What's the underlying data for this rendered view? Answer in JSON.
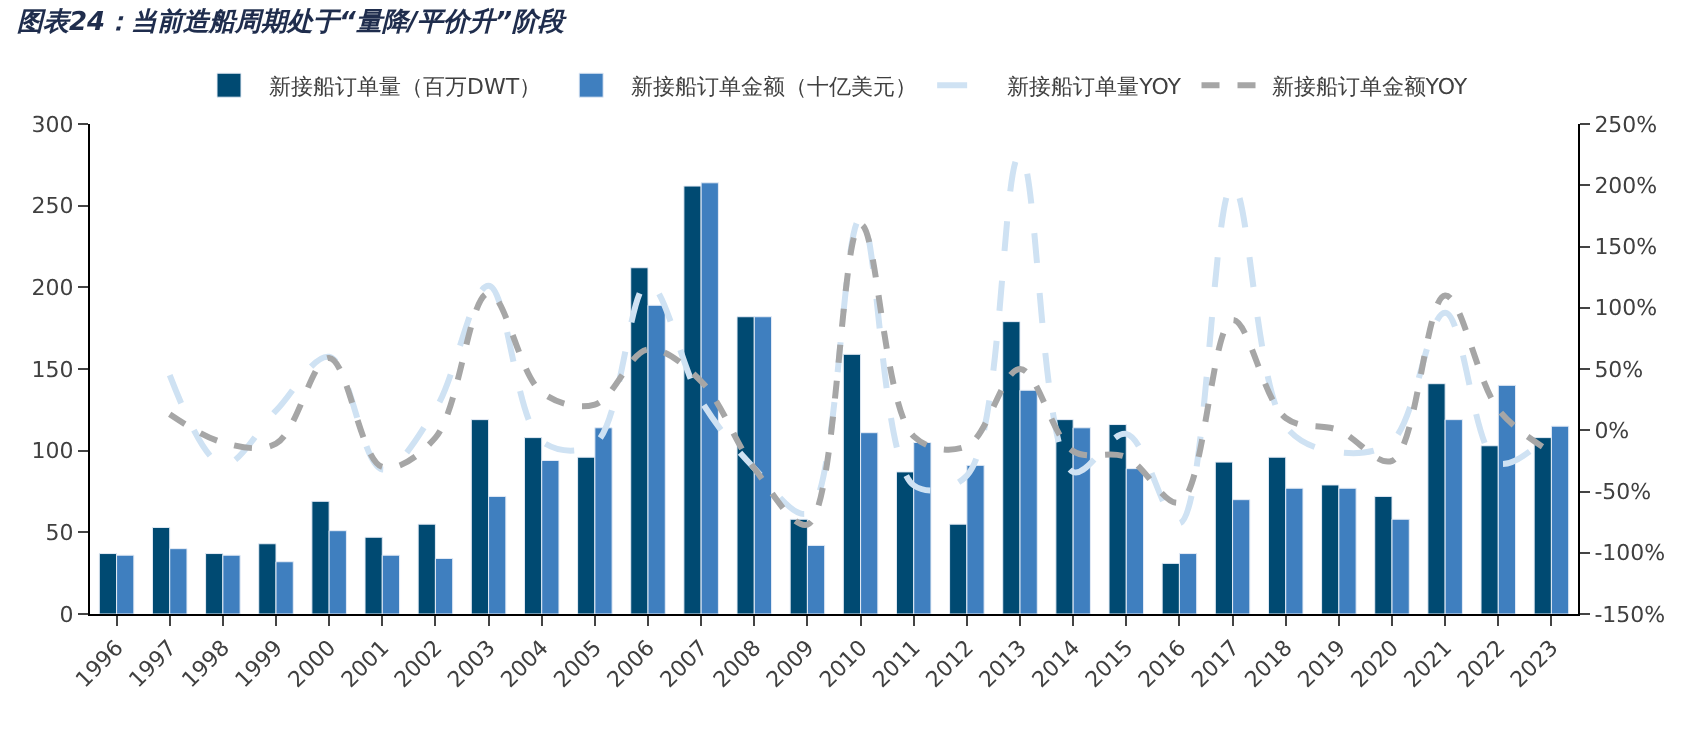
{
  "chart_data": {
    "type": "bar",
    "title": "图表24：当前造船周期处于“量降/平价升”阶段",
    "categories": [
      "1996",
      "1997",
      "1998",
      "1999",
      "2000",
      "2001",
      "2002",
      "2003",
      "2004",
      "2005",
      "2006",
      "2007",
      "2008",
      "2009",
      "2010",
      "2011",
      "2012",
      "2013",
      "2014",
      "2015",
      "2016",
      "2017",
      "2018",
      "2019",
      "2020",
      "2021",
      "2022",
      "2023"
    ],
    "series": [
      {
        "name": "新接船订单量（百万DWT）",
        "color": "#004a72",
        "values": [
          37,
          53,
          37,
          43,
          69,
          47,
          55,
          119,
          108,
          96,
          212,
          262,
          182,
          58,
          159,
          87,
          55,
          179,
          119,
          116,
          31,
          93,
          96,
          79,
          72,
          141,
          103,
          108
        ]
      },
      {
        "name": "新接船订单金额（十亿美元）",
        "color": "#3f7fbf",
        "values": [
          36,
          40,
          36,
          32,
          51,
          36,
          34,
          72,
          94,
          114,
          189,
          264,
          182,
          42,
          111,
          105,
          91,
          137,
          114,
          89,
          37,
          70,
          77,
          77,
          58,
          119,
          140,
          115
        ]
      },
      {
        "name": "新接船订单量YOY",
        "type": "line",
        "axis": "y2",
        "color": "#cfe2f3",
        "line_style": "longdash",
        "values": [
          null,
          45,
          -28,
          16,
          60,
          -32,
          17,
          118,
          -9,
          -11,
          120,
          24,
          -31,
          -68,
          173,
          -45,
          -37,
          225,
          -34,
          -3,
          -76,
          200,
          3,
          -18,
          -9,
          96,
          -27,
          -2
        ]
      },
      {
        "name": "新接船订单金额YOY",
        "type": "line",
        "axis": "y2",
        "color": "#a6a6a6",
        "line_style": "dashed",
        "values": [
          null,
          13,
          -10,
          -11,
          59,
          -30,
          -6,
          112,
          31,
          21,
          66,
          40,
          -31,
          -77,
          168,
          -5,
          -13,
          50,
          -17,
          -22,
          -59,
          90,
          10,
          0,
          -25,
          110,
          17,
          -18
        ]
      }
    ],
    "ylim": [
      0,
      300
    ],
    "yticks": [
      0,
      50,
      100,
      150,
      200,
      250,
      300
    ],
    "y2lim": [
      -150,
      250
    ],
    "y2ticks": [
      {
        "value": -150,
        "label": "-150%"
      },
      {
        "value": -100,
        "label": "-100%"
      },
      {
        "value": -50,
        "label": "-50%"
      },
      {
        "value": 0,
        "label": "0%"
      },
      {
        "value": 50,
        "label": "50%"
      },
      {
        "value": 100,
        "label": "100%"
      },
      {
        "value": 150,
        "label": "150%"
      },
      {
        "value": 200,
        "label": "200%"
      },
      {
        "value": 250,
        "label": "250%"
      }
    ],
    "grid": false,
    "legend": "top",
    "marker": "none"
  }
}
